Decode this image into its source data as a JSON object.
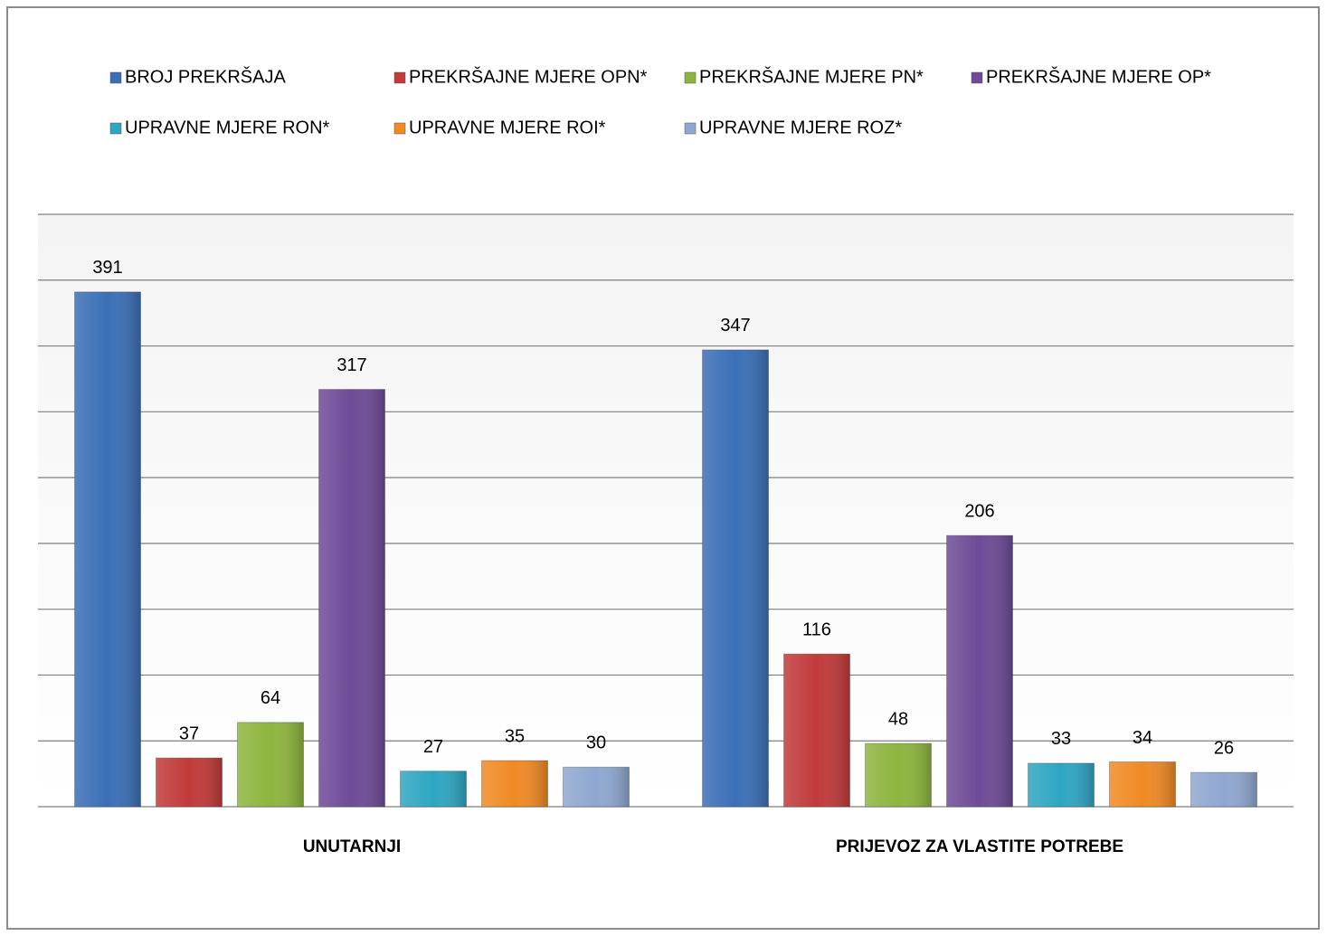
{
  "chart_data": {
    "type": "bar",
    "categories": [
      "UNUTARNJI",
      "PRIJEVOZ ZA VLASTITE POTREBE"
    ],
    "series": [
      {
        "name": "BROJ PREKRŠAJA",
        "color": "#3b6fb6",
        "values": [
          391,
          347
        ]
      },
      {
        "name": "PREKRŠAJNE MJERE OPN*",
        "color": "#c23a3a",
        "values": [
          37,
          116
        ]
      },
      {
        "name": "PREKRŠAJNE MJERE PN*",
        "color": "#8db53e",
        "values": [
          64,
          48
        ]
      },
      {
        "name": "PREKRŠAJNE MJERE OP*",
        "color": "#6e4b97",
        "values": [
          317,
          206
        ]
      },
      {
        "name": "UPRAVNE MJERE RON*",
        "color": "#2ea6c2",
        "values": [
          27,
          33
        ]
      },
      {
        "name": "UPRAVNE MJERE ROI*",
        "color": "#f08a24",
        "values": [
          35,
          34
        ]
      },
      {
        "name": "UPRAVNE MJERE ROZ*",
        "color": "#8fa7d0",
        "values": [
          30,
          26
        ]
      }
    ],
    "ylim": [
      0,
      450
    ],
    "yticks": [
      0,
      50,
      100,
      150,
      200,
      250,
      300,
      350,
      400,
      450
    ],
    "grid": true
  }
}
